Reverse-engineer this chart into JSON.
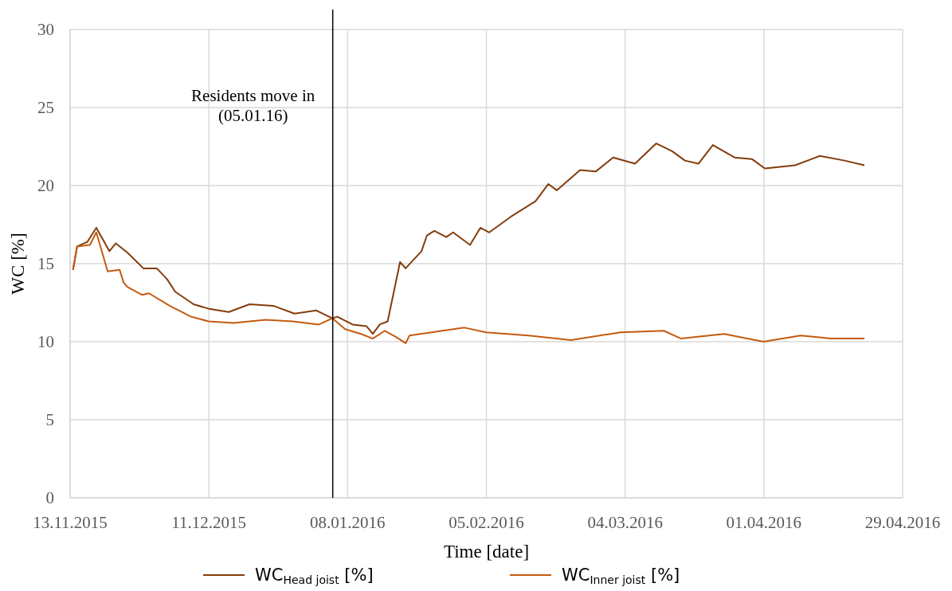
{
  "chart_data": {
    "type": "line",
    "xlabel": "Time [date]",
    "ylabel": "WC [%]",
    "xlim": [
      "2015-11-13",
      "2016-04-29"
    ],
    "xticks": [
      {
        "value": "2015-11-13",
        "label": "13.11.2015"
      },
      {
        "value": "2015-12-11",
        "label": "11.12.2015"
      },
      {
        "value": "2016-01-08",
        "label": "08.01.2016"
      },
      {
        "value": "2016-02-05",
        "label": "05.02.2016"
      },
      {
        "value": "2016-03-04",
        "label": "04.03.2016"
      },
      {
        "value": "2016-04-01",
        "label": "01.04.2016"
      },
      {
        "value": "2016-04-29",
        "label": "29.04.2016"
      }
    ],
    "ylim": [
      0,
      30
    ],
    "yticks": [
      0,
      5,
      10,
      15,
      20,
      25,
      30
    ],
    "grid": true,
    "legend": "bottom",
    "line_style": "solid",
    "ref_lines": [
      {
        "axis": "x",
        "value": "2016-01-05",
        "label": "Residents move in\n(05.01.16)",
        "color": "#000000"
      }
    ],
    "series": [
      {
        "name": "WC$_{Head joist}$ [%]",
        "color": "#843c0c",
        "x": [
          "2015-11-13T14:00",
          "2015-11-14T10:00",
          "2015-11-16T12:00",
          "2015-11-18T07:00",
          "2015-11-20T22:00",
          "2015-11-22T05:00",
          "2015-11-24T14:00",
          "2015-11-27T19:00",
          "2015-11-30T12:00",
          "2015-12-02T14:00",
          "2015-12-04T05:00",
          "2015-12-07T22:00",
          "2015-12-11T02:00",
          "2015-12-15",
          "2015-12-19T05:00",
          "2015-12-24",
          "2015-12-28T07:00",
          "2016-01-01T17:00",
          "2016-01-04T22:00",
          "2016-01-05T22:00",
          "2016-01-09",
          "2016-01-11T19:00",
          "2016-01-13T02:00",
          "2016-01-14T12:00",
          "2016-01-16T02:00",
          "2016-01-18T14:00",
          "2016-01-19T17:00",
          "2016-01-22T22:00",
          "2016-01-24",
          "2016-01-25T12:00",
          "2016-01-27T22:00",
          "2016-01-29T07:00",
          "2016-02-01T17:00",
          "2016-02-03T19:00",
          "2016-02-05T14:00",
          "2016-02-09T22:00",
          "2016-02-14T22:00",
          "2016-02-17T12:00",
          "2016-02-19T05:00",
          "2016-02-23T22:00",
          "2016-02-27T02:00",
          "2016-03-01T14:00",
          "2016-03-06",
          "2016-03-10T07:00",
          "2016-03-13T12:00",
          "2016-03-16T02:00",
          "2016-03-18T19:00",
          "2016-03-21T17:00",
          "2016-03-26T02:00",
          "2016-03-29T14:00",
          "2016-04-01T05:00",
          "2016-04-07T07:00",
          "2016-04-12T07:00",
          "2016-04-17T07:00",
          "2016-04-21T07:00"
        ],
        "values": [
          14.6,
          16.1,
          16.4,
          17.3,
          15.8,
          16.3,
          15.7,
          14.7,
          14.7,
          14.0,
          13.2,
          12.4,
          12.1,
          11.9,
          12.4,
          12.3,
          11.8,
          12.0,
          11.5,
          11.6,
          11.1,
          11.0,
          10.5,
          11.1,
          11.3,
          15.1,
          14.7,
          15.8,
          16.8,
          17.1,
          16.7,
          17.0,
          16.2,
          17.3,
          17.0,
          18.0,
          19.0,
          20.1,
          19.7,
          21.0,
          20.9,
          21.8,
          21.4,
          22.7,
          22.2,
          21.6,
          21.4,
          22.6,
          21.8,
          21.7,
          21.1,
          21.3,
          21.9,
          21.6,
          21.3
        ]
      },
      {
        "name": "WC$_{Inner joist}$ [%]",
        "color": "#c55a11",
        "x": [
          "2015-11-13T14:00",
          "2015-11-14T10:00",
          "2015-11-17",
          "2015-11-18T07:00",
          "2015-11-20T14:00",
          "2015-11-23",
          "2015-11-23T19:00",
          "2015-11-24T14:00",
          "2015-11-27T12:00",
          "2015-11-28T22:00",
          "2015-12-03T02:00",
          "2015-12-07T10:00",
          "2015-12-11",
          "2015-12-16",
          "2015-12-22T10:00",
          "2015-12-27T22:00",
          "2016-01-02T05:00",
          "2016-01-04T22:00",
          "2016-01-07T12:00",
          "2016-01-10T17:00",
          "2016-01-13T02:00",
          "2016-01-15T12:00",
          "2016-01-17T19:00",
          "2016-01-19T17:00",
          "2016-01-20T12:00",
          "2016-01-31T14:00",
          "2016-02-04T22:00",
          "2016-02-13T12:00",
          "2016-02-22T02:00",
          "2016-03-03T02:00",
          "2016-03-11T19:00",
          "2016-03-15T07:00",
          "2016-03-24",
          "2016-03-31T22:00",
          "2016-04-08T10:00",
          "2016-04-14T12:00",
          "2016-04-21T07:00"
        ],
        "values": [
          14.6,
          16.1,
          16.2,
          17.0,
          14.5,
          14.6,
          13.8,
          13.5,
          13.0,
          13.1,
          12.3,
          11.6,
          11.3,
          11.2,
          11.4,
          11.3,
          11.1,
          11.5,
          10.8,
          10.5,
          10.2,
          10.7,
          10.3,
          9.9,
          10.4,
          10.9,
          10.6,
          10.4,
          10.1,
          10.6,
          10.7,
          10.2,
          10.5,
          10.0,
          10.4,
          10.2,
          10.2
        ]
      }
    ]
  }
}
